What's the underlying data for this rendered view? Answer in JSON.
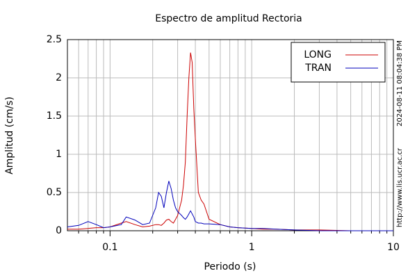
{
  "chart_data": {
    "type": "line",
    "title": "Espectro de amplitud Rectoria",
    "x_label": "Periodo (s)",
    "y_label": "Amplitud (cm/s)",
    "annotations": [
      "2024-08-11 08:04:38 PM",
      "http://www.lis.ucr.ac.cr"
    ],
    "x_scale": "log",
    "grid": true,
    "legend": "upper right",
    "xlim": [
      0.05,
      10
    ],
    "ylim": [
      0,
      2.5
    ],
    "xticks": [
      0.1,
      1,
      10
    ],
    "xminorticks": [
      0.06,
      0.07,
      0.08,
      0.09,
      0.2,
      0.3,
      0.4,
      0.5,
      0.6,
      0.7,
      0.8,
      0.9,
      2,
      3,
      4,
      5,
      6,
      7,
      8,
      9
    ],
    "yticks": [
      0,
      0.5,
      1,
      1.5,
      2,
      2.5
    ],
    "x": [
      0.05,
      0.06,
      0.07,
      0.08,
      0.09,
      0.1,
      0.12,
      0.13,
      0.15,
      0.17,
      0.19,
      0.21,
      0.22,
      0.23,
      0.24,
      0.25,
      0.26,
      0.27,
      0.28,
      0.29,
      0.3,
      0.32,
      0.33,
      0.34,
      0.35,
      0.36,
      0.37,
      0.38,
      0.39,
      0.4,
      0.42,
      0.44,
      0.46,
      0.5,
      0.6,
      0.7,
      0.8,
      1,
      1.2,
      1.5,
      2,
      3,
      5,
      10
    ],
    "series": [
      {
        "name": "LONG",
        "color": "#cc0000",
        "values": [
          0.02,
          0.02,
          0.03,
          0.04,
          0.04,
          0.05,
          0.1,
          0.12,
          0.08,
          0.05,
          0.06,
          0.08,
          0.08,
          0.07,
          0.1,
          0.14,
          0.15,
          0.12,
          0.1,
          0.15,
          0.2,
          0.4,
          0.6,
          0.9,
          1.5,
          2.0,
          2.33,
          2.2,
          1.6,
          1.2,
          0.5,
          0.4,
          0.35,
          0.15,
          0.08,
          0.05,
          0.04,
          0.03,
          0.02,
          0.02,
          0.01,
          0.01,
          0,
          0
        ]
      },
      {
        "name": "TRAN",
        "color": "#0000bb",
        "values": [
          0.05,
          0.07,
          0.12,
          0.08,
          0.04,
          0.05,
          0.08,
          0.18,
          0.14,
          0.08,
          0.1,
          0.3,
          0.5,
          0.45,
          0.3,
          0.5,
          0.65,
          0.55,
          0.4,
          0.3,
          0.25,
          0.2,
          0.17,
          0.15,
          0.18,
          0.22,
          0.26,
          0.22,
          0.18,
          0.12,
          0.1,
          0.1,
          0.09,
          0.09,
          0.08,
          0.05,
          0.04,
          0.03,
          0.03,
          0.02,
          0.01,
          0,
          0,
          0
        ]
      }
    ]
  }
}
